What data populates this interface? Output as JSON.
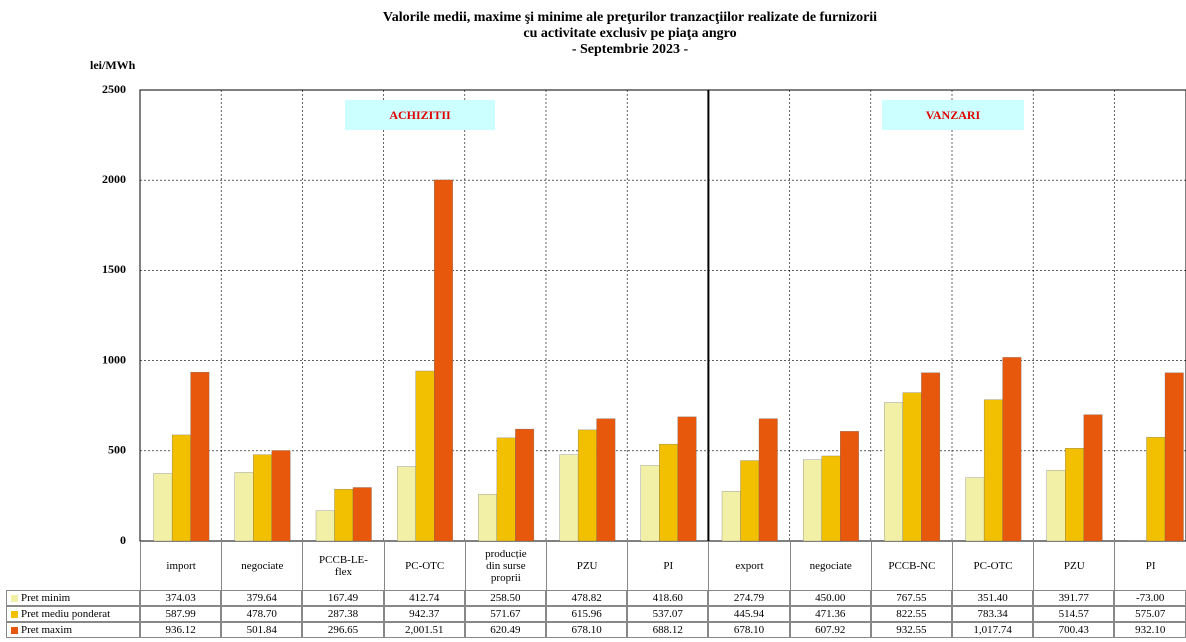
{
  "chart_data": {
    "type": "bar",
    "title": "Valorile medii, maxime şi minime ale preţurilor tranzacţiilor realizate de furnizorii cu activitate exclusiv pe piaţa angro",
    "subtitle": "- Septembrie 2023 -",
    "y_label": "lei/MWh",
    "categories": [
      "import",
      "negociate",
      "PCCB-LE-flex",
      "PC-OTC",
      "producție din surse proprii",
      "PZU",
      "PI",
      "export",
      "negociate",
      "PCCB-NC",
      "PC-OTC",
      "PZU",
      "PI"
    ],
    "series": [
      {
        "name": "Pret minim",
        "color": "#f2efa6",
        "values": [
          374.03,
          379.64,
          167.49,
          412.74,
          258.5,
          478.82,
          418.6,
          274.79,
          450.0,
          767.55,
          351.4,
          391.77,
          -73.0
        ],
        "value_labels": [
          "374.03",
          "379.64",
          "167.49",
          "412.74",
          "258.50",
          "478.82",
          "418.60",
          "274.79",
          "450.00",
          "767.55",
          "351.40",
          "391.77",
          "-73.00"
        ]
      },
      {
        "name": "Pret mediu ponderat",
        "color": "#f2c000",
        "values": [
          587.99,
          478.7,
          287.38,
          942.37,
          571.67,
          615.96,
          537.07,
          445.94,
          471.36,
          822.55,
          783.34,
          514.57,
          575.07
        ],
        "value_labels": [
          "587.99",
          "478.70",
          "287.38",
          "942.37",
          "571.67",
          "615.96",
          "537.07",
          "445.94",
          "471.36",
          "822.55",
          "783.34",
          "514.57",
          "575.07"
        ]
      },
      {
        "name": "Pret maxim",
        "color": "#e8580c",
        "values": [
          936.12,
          501.84,
          296.65,
          2001.51,
          620.49,
          678.1,
          688.12,
          678.1,
          607.92,
          932.55,
          1017.74,
          700.43,
          932.1
        ],
        "value_labels": [
          "936.12",
          "501.84",
          "296.65",
          "2,001.51",
          "620.49",
          "678.10",
          "688.12",
          "678.10",
          "607.92",
          "932.55",
          "1,017.74",
          "700.43",
          "932.10"
        ]
      }
    ],
    "annotations": [
      {
        "text": "ACHIZITII"
      },
      {
        "text": "VANZARI"
      }
    ],
    "ylim": [
      0,
      2500
    ],
    "yticks": [
      0,
      500,
      1000,
      1500,
      2000,
      2500
    ],
    "grid": true
  }
}
